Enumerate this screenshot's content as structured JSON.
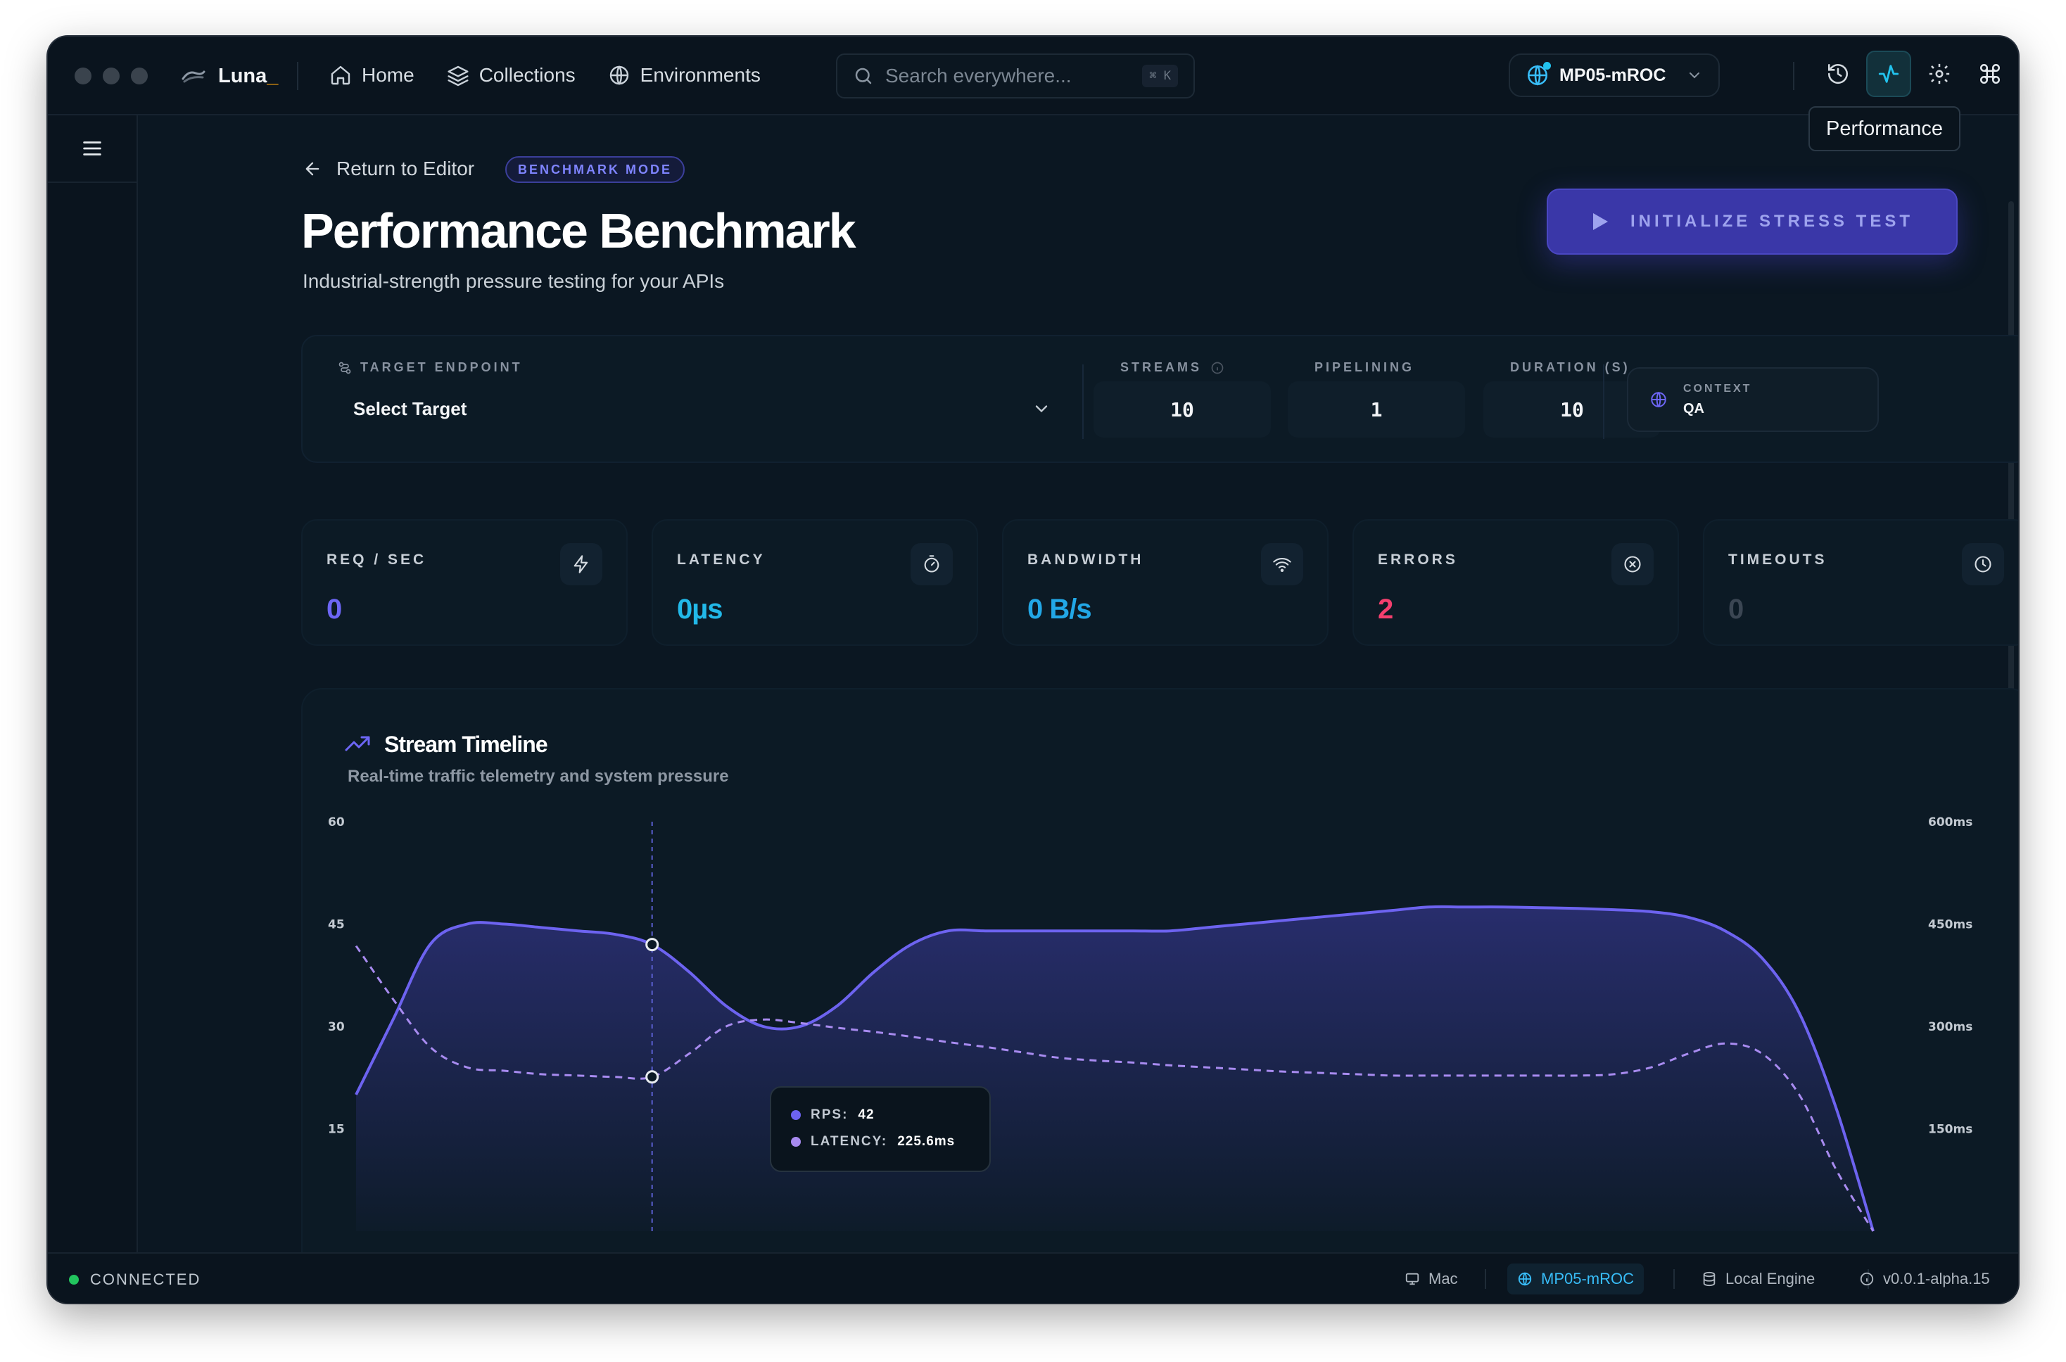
{
  "app": {
    "name": "Luna",
    "cursor": "_"
  },
  "nav": [
    {
      "label": "Home",
      "icon": "home-icon"
    },
    {
      "label": "Collections",
      "icon": "layers-icon"
    },
    {
      "label": "Environments",
      "icon": "globe-icon"
    }
  ],
  "search": {
    "placeholder": "Search everywhere...",
    "shortcut": "⌘ K"
  },
  "environment": {
    "name": "MP05-mROC",
    "status_color": "#22c3ee"
  },
  "toolbar": {
    "active_tooltip": "Performance",
    "icons": [
      "history-icon",
      "activity-icon",
      "settings-icon",
      "command-icon"
    ]
  },
  "header": {
    "return_label": "Return to Editor",
    "badge": "BENCHMARK MODE",
    "title": "Performance Benchmark",
    "subtitle": "Industrial-strength pressure testing for your APIs",
    "action_label": "INITIALIZE STRESS TEST"
  },
  "config": {
    "target_label": "TARGET ENDPOINT",
    "target_value": "Select Target",
    "streams_label": "STREAMS",
    "streams_value": "10",
    "pipelining_label": "PIPELINING",
    "pipelining_value": "1",
    "duration_label": "DURATION (S)",
    "duration_value": "10",
    "context_label": "CONTEXT",
    "context_value": "QA"
  },
  "stats": [
    {
      "label": "REQ / SEC",
      "value": "0",
      "icon": "zap-icon",
      "color": "#6d66f5"
    },
    {
      "label": "LATENCY",
      "value": "0µs",
      "icon": "timer-icon",
      "color": "#22b8e8"
    },
    {
      "label": "BANDWIDTH",
      "value": "0 B/s",
      "icon": "wifi-icon",
      "color": "#22a7e6"
    },
    {
      "label": "ERRORS",
      "value": "2",
      "icon": "x-circle-icon",
      "color": "#f43f6e"
    },
    {
      "label": "TIMEOUTS",
      "value": "0",
      "icon": "clock-icon",
      "color": "#3b4653"
    }
  ],
  "chart": {
    "title": "Stream Timeline",
    "subtitle": "Real-time traffic telemetry and system pressure",
    "tooltip": {
      "rps_label": "RPS:",
      "rps_value": "42",
      "latency_label": "LATENCY:",
      "latency_value": "225.6ms"
    }
  },
  "chart_data": {
    "type": "line",
    "left_axis": {
      "ticks": [
        "60",
        "45",
        "30",
        "15"
      ],
      "range": [
        0,
        60
      ]
    },
    "right_axis": {
      "ticks": [
        "600ms",
        "450ms",
        "300ms",
        "150ms"
      ],
      "range": [
        0,
        600
      ]
    },
    "series": [
      {
        "name": "RPS",
        "style": "area-solid",
        "color": "#6d63f0",
        "values": [
          20,
          31,
          42,
          45,
          45,
          44.5,
          44,
          43.5,
          42,
          38,
          33,
          30,
          30,
          33,
          38,
          42,
          44,
          44,
          44,
          44,
          44,
          44,
          44,
          44.5,
          45,
          45.5,
          46,
          46.5,
          47,
          47.5,
          47.5,
          47.5,
          47.4,
          47.3,
          47.1,
          46.8,
          46,
          44,
          40,
          32,
          18,
          0
        ]
      },
      {
        "name": "LATENCY",
        "style": "dashed",
        "color": "#a88bf0",
        "values": [
          418,
          340,
          270,
          240,
          235,
          230,
          228,
          226,
          226,
          260,
          300,
          310,
          305,
          298,
          292,
          285,
          277,
          270,
          262,
          254,
          250,
          247,
          243,
          240,
          237,
          234,
          232,
          230,
          228,
          228,
          228,
          228,
          228,
          228,
          230,
          240,
          260,
          275,
          260,
          200,
          90,
          0
        ]
      }
    ],
    "hover_index": 8,
    "grid": false,
    "legend": "none"
  },
  "statusbar": {
    "connection": "CONNECTED",
    "connection_color": "#22c55e",
    "platform": "Mac",
    "environment": "MP05-mROC",
    "engine": "Local Engine",
    "version": "v0.0.1-alpha.15"
  }
}
